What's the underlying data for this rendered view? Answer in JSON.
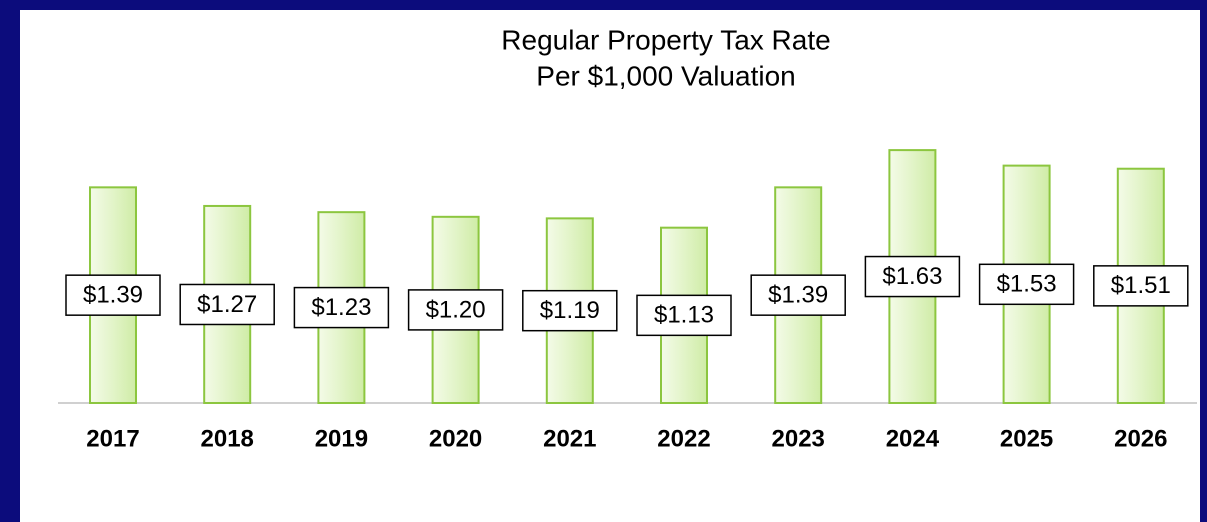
{
  "chart_data": {
    "type": "bar",
    "title": "Regular Property Tax Rate",
    "subtitle": "Per $1,000 Valuation",
    "categories": [
      "2017",
      "2018",
      "2019",
      "2020",
      "2021",
      "2022",
      "2023",
      "2024",
      "2025",
      "2026"
    ],
    "values": [
      1.39,
      1.27,
      1.23,
      1.2,
      1.19,
      1.13,
      1.39,
      1.63,
      1.53,
      1.51
    ],
    "value_labels": [
      "$1.39",
      "$1.27",
      "$1.23",
      "$1.20",
      "$1.19",
      "$1.13",
      "$1.39",
      "$1.63",
      "$1.53",
      "$1.51"
    ],
    "color": "#8cc63f",
    "ylim": [
      0,
      1.65
    ]
  }
}
